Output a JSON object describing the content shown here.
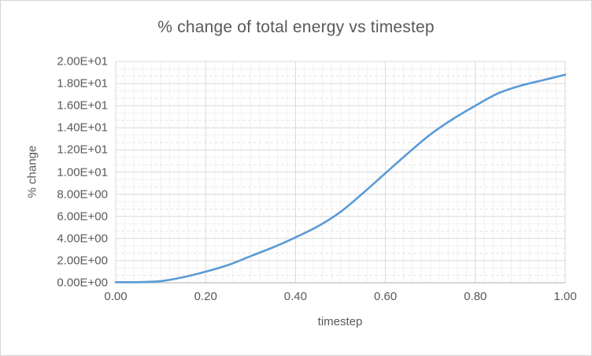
{
  "chart_data": {
    "type": "line",
    "title": "% change of total energy vs timestep",
    "xlabel": "timestep",
    "ylabel": "% change",
    "x": [
      0.0,
      0.05,
      0.1,
      0.15,
      0.2,
      0.25,
      0.3,
      0.35,
      0.4,
      0.45,
      0.5,
      0.55,
      0.6,
      0.65,
      0.7,
      0.75,
      0.8,
      0.85,
      0.9,
      0.95,
      1.0
    ],
    "values": [
      0.05,
      0.06,
      0.15,
      0.5,
      1.0,
      1.6,
      2.4,
      3.2,
      4.1,
      5.1,
      6.4,
      8.1,
      9.9,
      11.7,
      13.4,
      14.8,
      16.0,
      17.1,
      17.8,
      18.3,
      18.8
    ],
    "xlim": [
      0,
      1
    ],
    "ylim": [
      0,
      20
    ],
    "x_major_unit": 0.2,
    "x_minor_unit": 0.02,
    "y_major_unit": 2,
    "x_tick_labels": [
      "0.00",
      "0.20",
      "0.40",
      "0.60",
      "0.80",
      "1.00"
    ],
    "y_tick_labels": [
      "0.00E+00",
      "2.00E+00",
      "4.00E+00",
      "6.00E+00",
      "8.00E+00",
      "1.00E+01",
      "1.20E+01",
      "1.40E+01",
      "1.60E+01",
      "1.80E+01",
      "2.00E+01"
    ],
    "grid": "major-and-minor",
    "legend": "none",
    "colors": {
      "series_line": "#5b9bd5",
      "text": "#595959",
      "major_grid": "#d9d9d9",
      "minor_grid_solid": "#f1f1f1",
      "minor_grid_dashed": "#e5e5e5",
      "axis_line": "#bfbfbf"
    }
  }
}
